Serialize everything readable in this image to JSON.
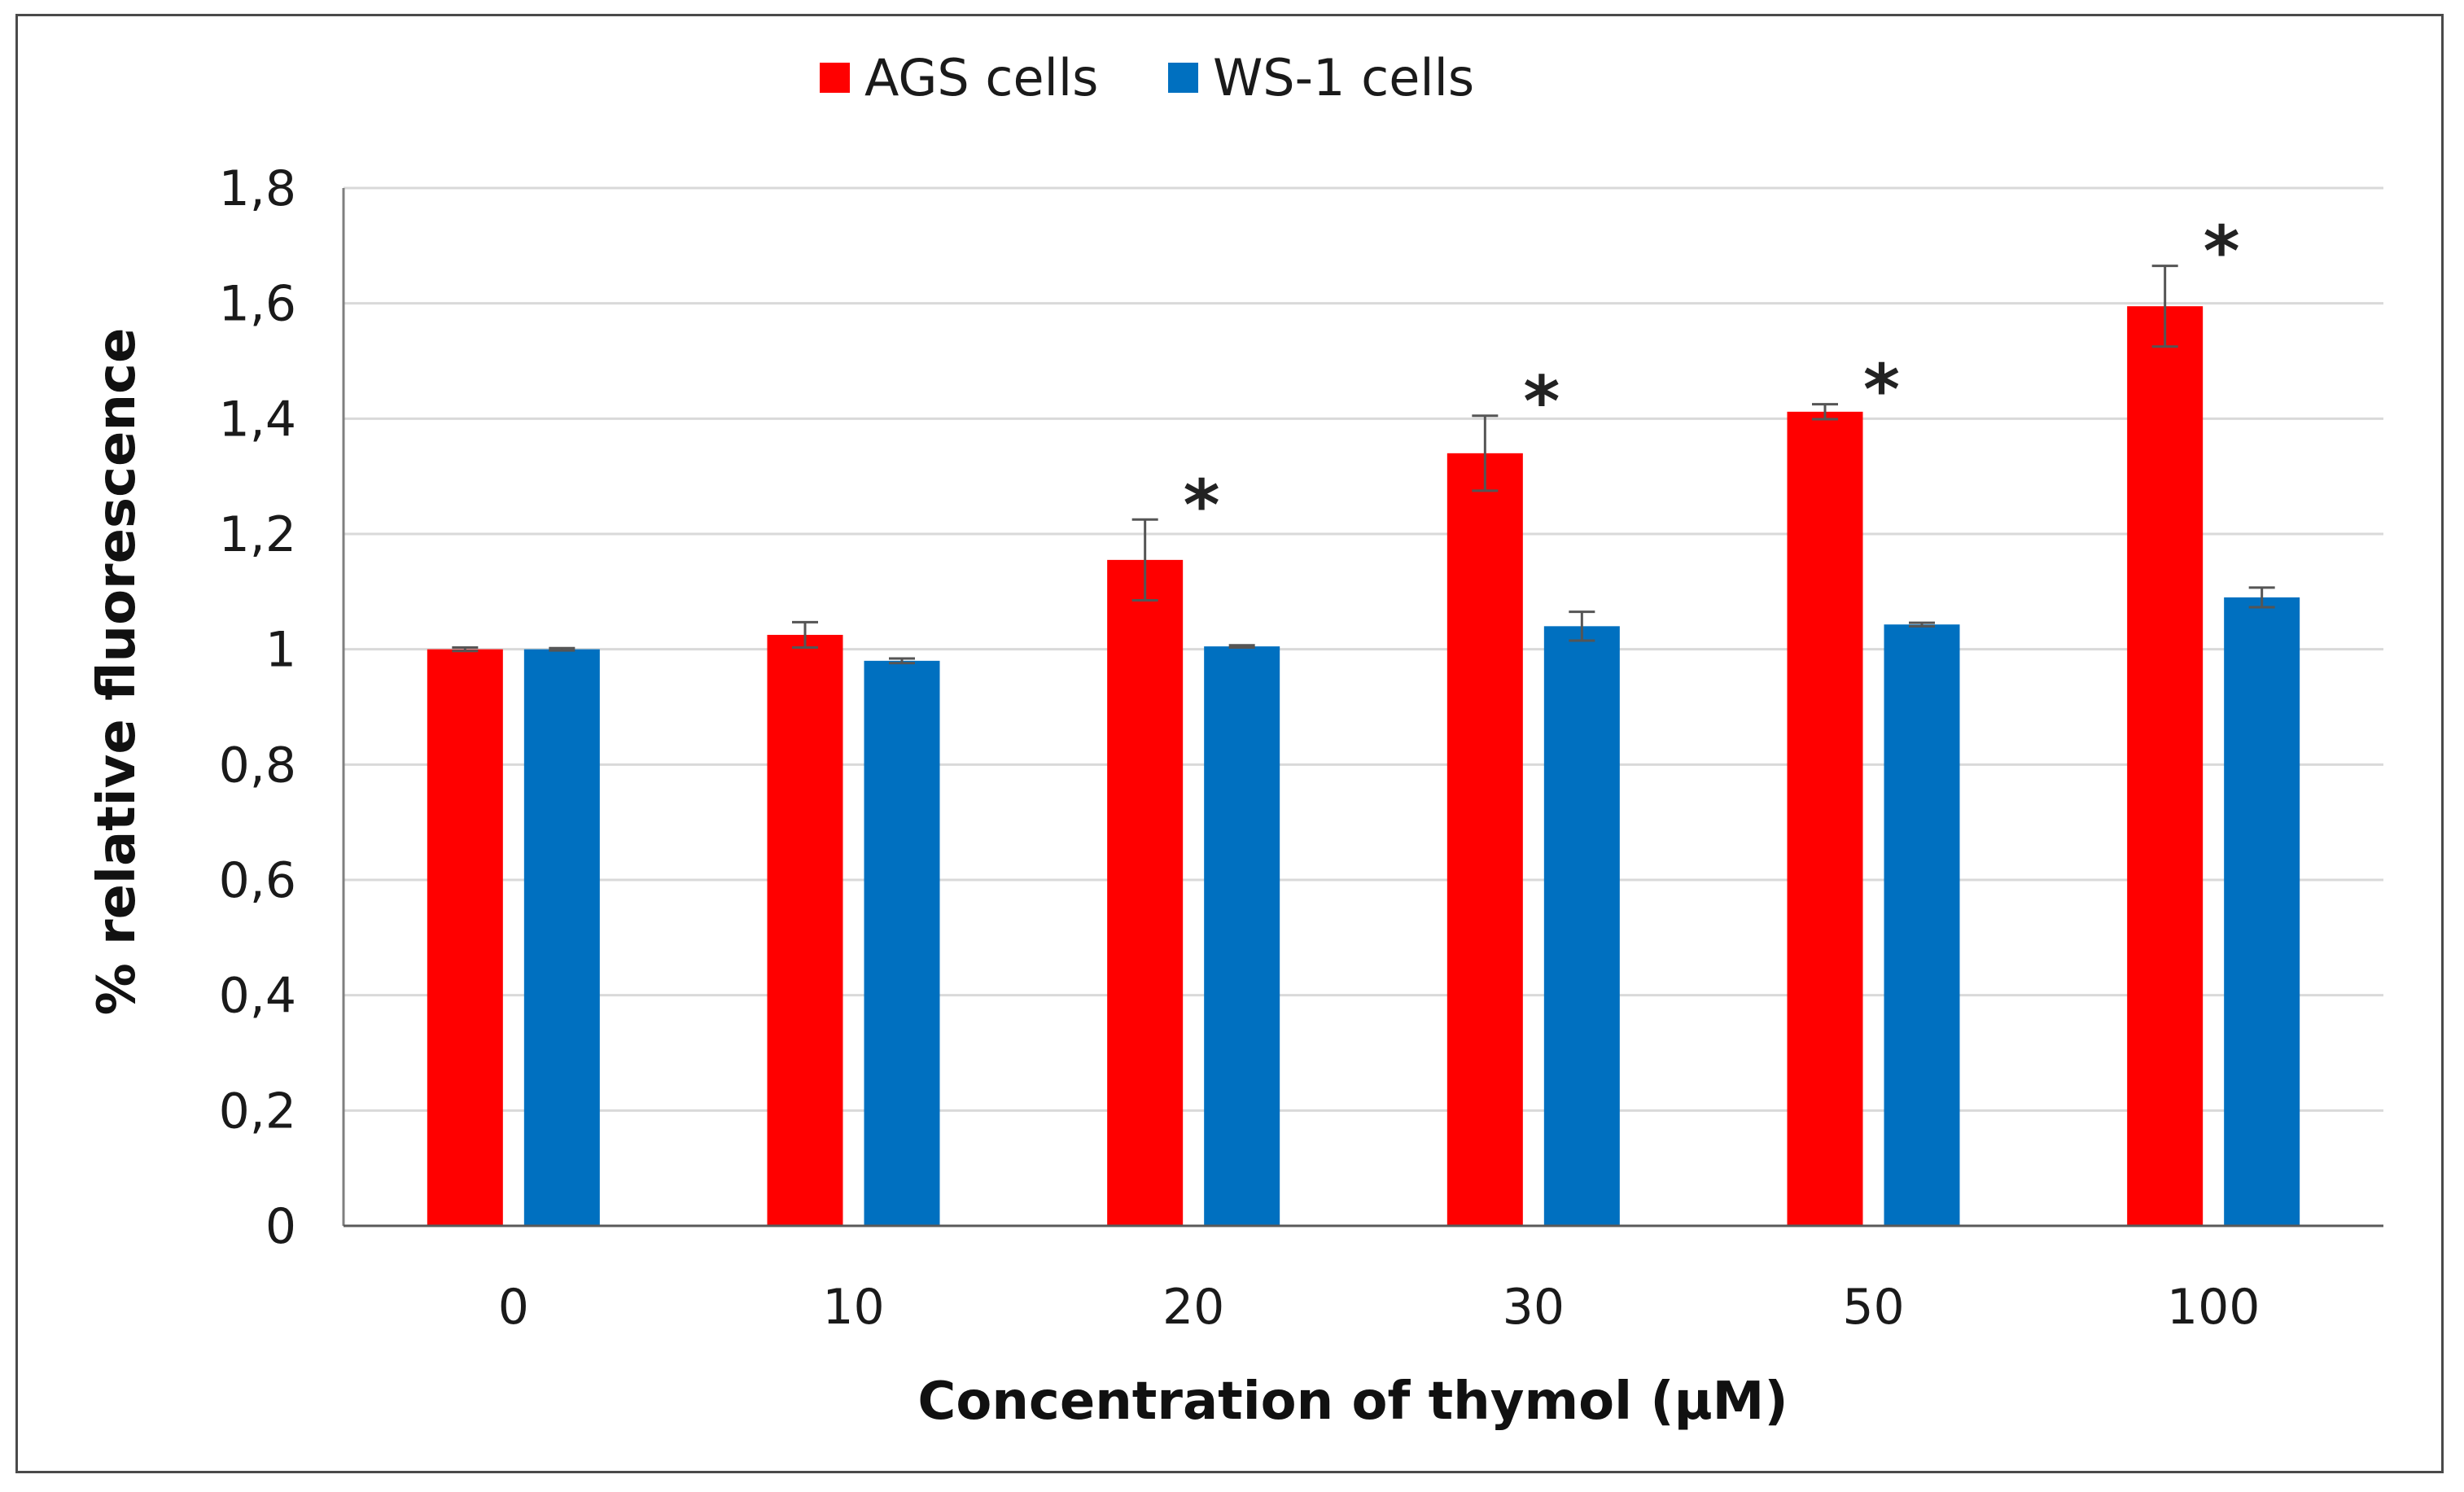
{
  "chart_data": {
    "type": "bar",
    "title": "",
    "xlabel": "Concentration of thymol (µM)",
    "ylabel": "% relative fluorescence",
    "categories": [
      "0",
      "10",
      "20",
      "30",
      "50",
      "100"
    ],
    "ylim": [
      0,
      1.8
    ],
    "yticks": [
      0,
      0.2,
      0.4,
      0.6,
      0.8,
      1.0,
      1.2,
      1.4,
      1.6,
      1.8
    ],
    "ytick_labels": [
      "0",
      "0,2",
      "0,4",
      "0,6",
      "0,8",
      "1",
      "1,2",
      "1,4",
      "1,6",
      "1,8"
    ],
    "grid": true,
    "legend_position": "top-center",
    "series": [
      {
        "name": "AGS cells",
        "color": "#ff0000",
        "values": [
          1.0,
          1.025,
          1.155,
          1.34,
          1.412,
          1.595
        ],
        "errors": [
          0.003,
          0.022,
          0.07,
          0.065,
          0.013,
          0.07
        ]
      },
      {
        "name": "WS-1 cells",
        "color": "#0070c0",
        "values": [
          1.0,
          0.98,
          1.005,
          1.04,
          1.043,
          1.09
        ],
        "errors": [
          0.002,
          0.004,
          0.002,
          0.025,
          0.003,
          0.017
        ]
      }
    ],
    "annotations": [
      {
        "text": "*",
        "category": "20"
      },
      {
        "text": "*",
        "category": "30"
      },
      {
        "text": "*",
        "category": "50"
      },
      {
        "text": "*",
        "category": "100"
      }
    ]
  }
}
